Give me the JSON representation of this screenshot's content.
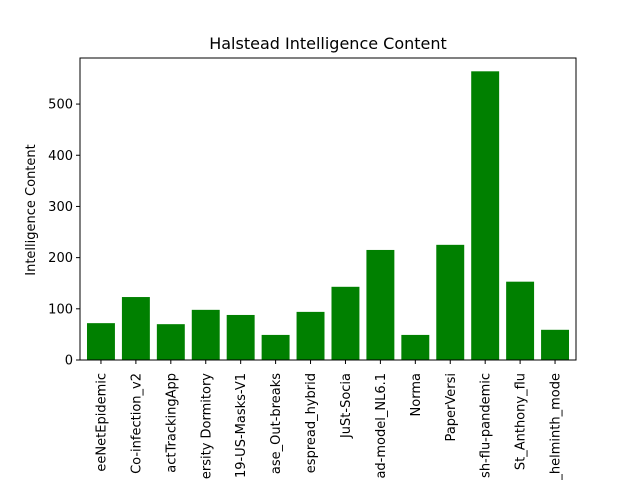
{
  "chart_data": {
    "type": "bar",
    "title": "Halstead Intelligence Content",
    "xlabel": "",
    "ylabel": "Intelligence Content",
    "ylim": [
      0,
      590
    ],
    "yticks": [
      0,
      100,
      200,
      300,
      400,
      500
    ],
    "bar_color": "#008000",
    "grid": false,
    "categories": [
      "eeNetEpidemic",
      "Co-infection_v2",
      "actTrackingApp",
      "ersity Dormitory",
      "19-US-Masks-V1",
      "ase_Out-breaks",
      "espread_hybrid",
      "JuSt-Socia",
      "ad-model_NL6.1",
      "Norma",
      "PaperVersi",
      "sh-flu-pandemic",
      "St_Anthony_flu",
      "_helminth_mode"
    ],
    "values": [
      72,
      123,
      70,
      98,
      88,
      49,
      94,
      143,
      215,
      49,
      225,
      564,
      153,
      59
    ]
  }
}
